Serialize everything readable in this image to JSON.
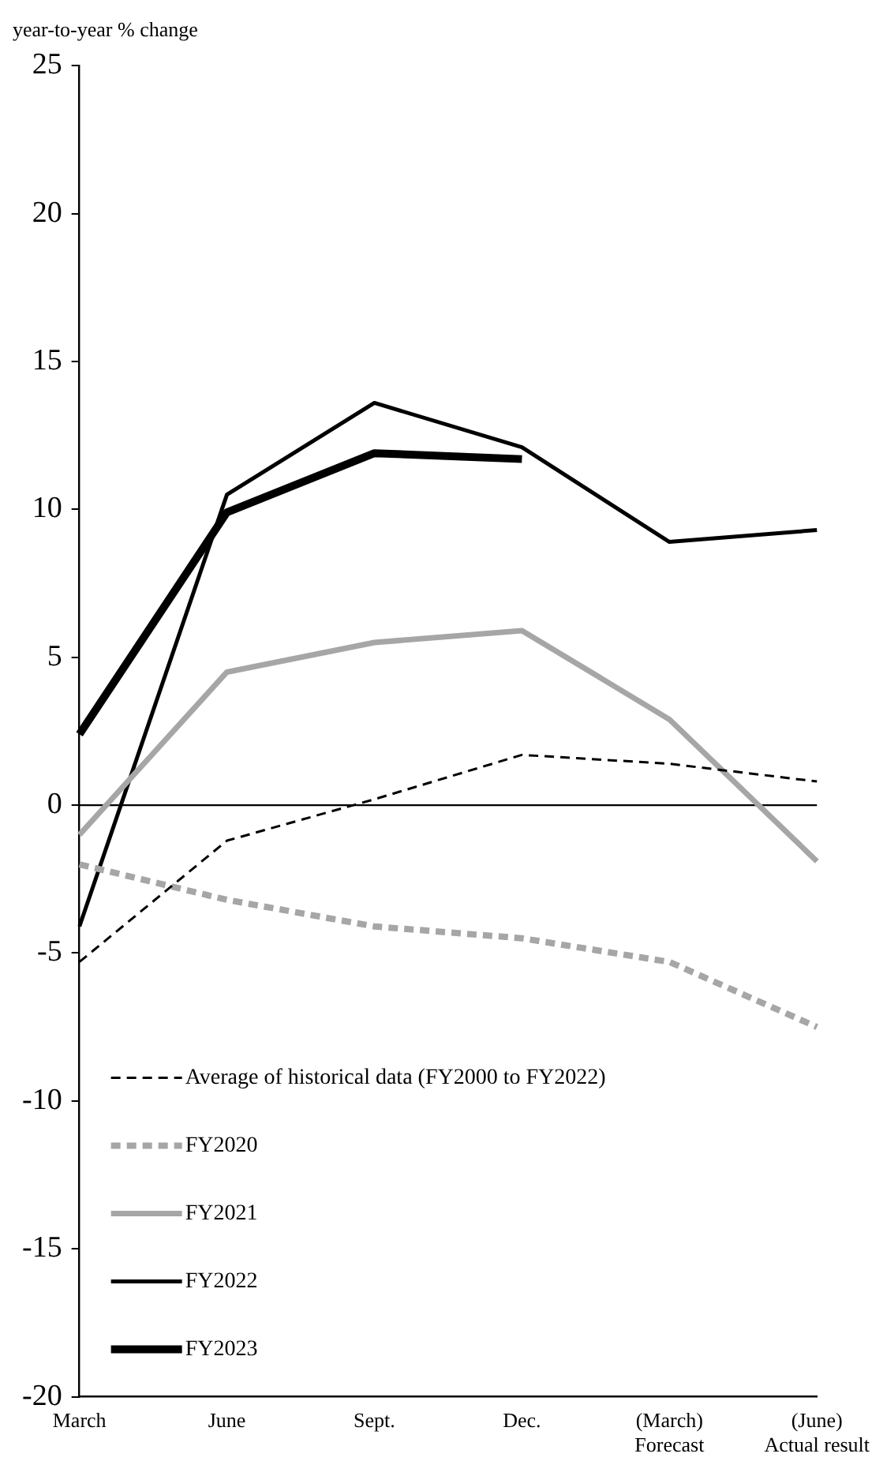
{
  "chart_data": {
    "type": "line",
    "ylabel": "year-to-year % change",
    "categories": [
      "March",
      "June",
      "Sept.",
      "Dec.",
      "(March)\nForecast",
      "(June)\nActual result"
    ],
    "ylim": [
      -20,
      25
    ],
    "yticks": [
      -20,
      -15,
      -10,
      -5,
      0,
      5,
      10,
      15,
      20,
      25
    ],
    "grid": false,
    "legend": "bottom left",
    "marker": "none",
    "ref_lines": [
      {
        "axis": "y",
        "value": 0,
        "color": "#000000"
      }
    ],
    "series": [
      {
        "name": "Average of historical data (FY2000 to FY2022)",
        "color": "#000000",
        "line_style": "dashed",
        "values": [
          -5.3,
          -1.2,
          0.2,
          1.7,
          1.4,
          0.8
        ]
      },
      {
        "name": "FY2020",
        "color": "#a6a6a6",
        "line_style": "dashed",
        "values": [
          -2.0,
          -3.2,
          -4.1,
          -4.5,
          -5.3,
          -7.5
        ]
      },
      {
        "name": "FY2021",
        "color": "#a6a6a6",
        "line_style": "solid",
        "values": [
          -1.0,
          4.5,
          5.5,
          5.9,
          2.9,
          -1.9
        ]
      },
      {
        "name": "FY2022",
        "color": "#000000",
        "line_style": "solid",
        "values": [
          -4.1,
          10.5,
          13.6,
          12.1,
          8.9,
          9.3
        ]
      },
      {
        "name": "FY2023",
        "color": "#000000",
        "line_style": "solid",
        "values": [
          2.4,
          9.9,
          11.9,
          11.7,
          null,
          null
        ]
      }
    ]
  }
}
